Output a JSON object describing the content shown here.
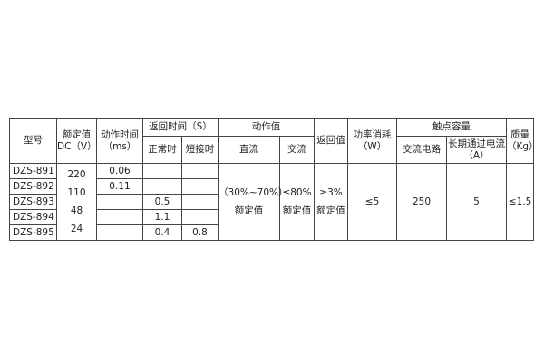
{
  "headers": {
    "model": "型号",
    "rated_voltage": "额定值 DC（V）",
    "operate_time": "动作时间（ms）",
    "return_time": "返回时间（S）",
    "return_normal": "正常时",
    "return_short": "短接时",
    "operate_value": "动作值",
    "operate_dc": "直流",
    "operate_ac": "交流",
    "return_value": "返回值",
    "power": "功率消耗（W）",
    "contact_capacity": "触点容量",
    "ac_circuit": "交流电路",
    "long_current": "长期通过电流（A）",
    "mass": "质量（Kg）"
  },
  "rows": [
    {
      "model": "DZS-891",
      "operate_time": "0.06",
      "return_normal": "",
      "return_short": ""
    },
    {
      "model": "DZS-892",
      "operate_time": "0.11",
      "return_normal": "",
      "return_short": ""
    },
    {
      "model": "DZS-893",
      "operate_time": "",
      "return_normal": "0.5",
      "return_short": ""
    },
    {
      "model": "DZS-894",
      "operate_time": "",
      "return_normal": "1.1",
      "return_short": ""
    },
    {
      "model": "DZS-895",
      "operate_time": "",
      "return_normal": "0.4",
      "return_short": "0.8"
    }
  ],
  "voltages": [
    "220",
    "110",
    "48",
    "24"
  ],
  "shared": {
    "operate_dc_value": "（30%~70%）",
    "operate_dc_unit": "额定值",
    "operate_ac_value": "≤80%",
    "operate_ac_unit": "额定值",
    "return_value": "≥3%",
    "return_unit": "额定值",
    "power": "≤5",
    "ac_circuit": "250",
    "long_current": "5",
    "mass": "≤1.5"
  }
}
